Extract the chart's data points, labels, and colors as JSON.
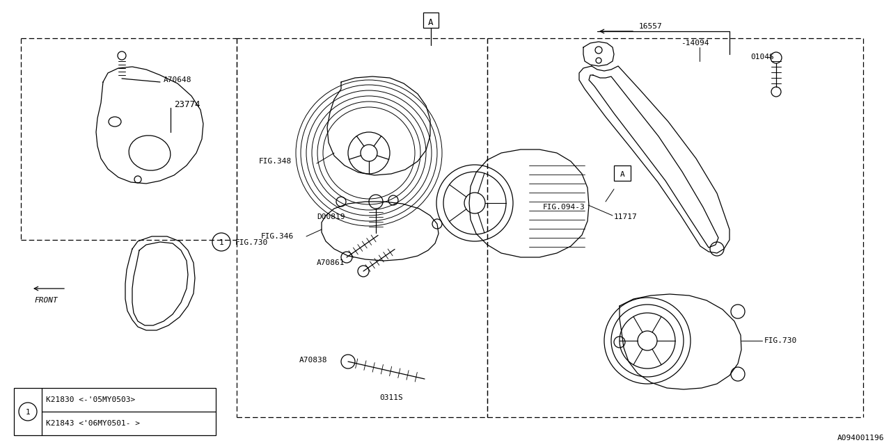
{
  "bg_color": "#ffffff",
  "line_color": "#1a1a2e",
  "fig_width": 12.8,
  "fig_height": 6.4,
  "dpi": 100,
  "ref_code": "A094001196",
  "notes_rows": [
    "K21830 <-'05MY0503>",
    "K21843 <'06MY0501- >"
  ]
}
